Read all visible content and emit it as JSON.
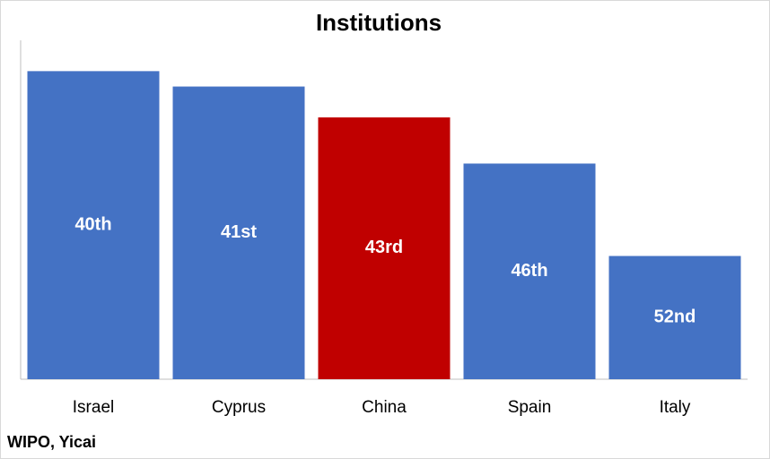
{
  "chart_data": {
    "type": "bar",
    "title": "Institutions",
    "categories": [
      "Israel",
      "Cyprus",
      "China",
      "Spain",
      "Italy"
    ],
    "values": [
      40,
      41,
      43,
      46,
      52
    ],
    "value_labels": [
      "40th",
      "41st",
      "43rd",
      "46th",
      "52nd"
    ],
    "colors": [
      "#4472c4",
      "#4472c4",
      "#c00000",
      "#4472c4",
      "#4472c4"
    ],
    "ylim": [
      60,
      38
    ],
    "source": "WIPO, Yicai"
  }
}
